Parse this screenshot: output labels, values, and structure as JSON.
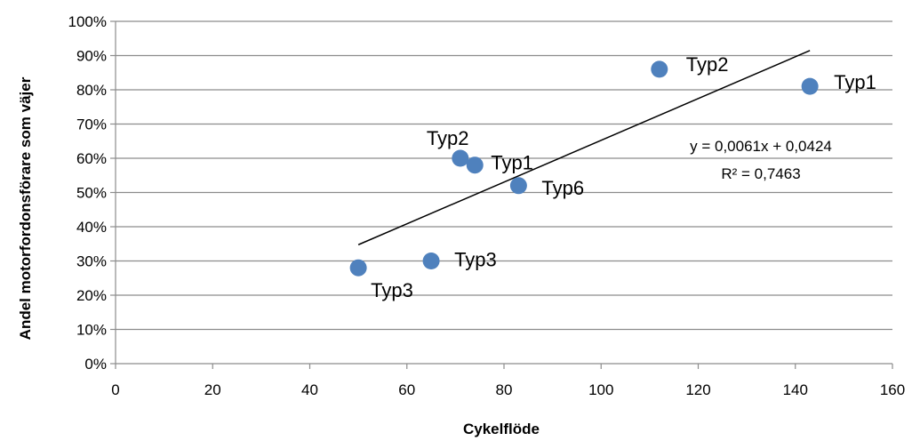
{
  "chart_data": {
    "type": "scatter",
    "xlabel": "Cykelflöde",
    "ylabel": "Andel motorfordonsförare som väjer",
    "xlim": [
      0,
      160
    ],
    "ylim": [
      0,
      1
    ],
    "x_ticks": [
      "0",
      "20",
      "40",
      "60",
      "80",
      "100",
      "120",
      "140",
      "160"
    ],
    "y_ticks": [
      "0%",
      "10%",
      "20%",
      "30%",
      "40%",
      "50%",
      "60%",
      "70%",
      "80%",
      "90%",
      "100%"
    ],
    "grid": "horizontal",
    "marker_color": "#4F81BD",
    "points": [
      {
        "x": 143,
        "y": 0.81,
        "label": "Typ1"
      },
      {
        "x": 112,
        "y": 0.86,
        "label": "Typ2"
      },
      {
        "x": 71,
        "y": 0.6,
        "label": "Typ2"
      },
      {
        "x": 74,
        "y": 0.58,
        "label": "Typ1"
      },
      {
        "x": 83,
        "y": 0.52,
        "label": "Typ6"
      },
      {
        "x": 65,
        "y": 0.3,
        "label": "Typ3"
      },
      {
        "x": 50,
        "y": 0.28,
        "label": "Typ3"
      }
    ],
    "trendline": {
      "slope": 0.0061,
      "intercept": 0.0424,
      "x_range": [
        50,
        143
      ],
      "equation": "y = 0,0061x + 0,0424",
      "r_squared": "R² = 0,7463"
    }
  }
}
